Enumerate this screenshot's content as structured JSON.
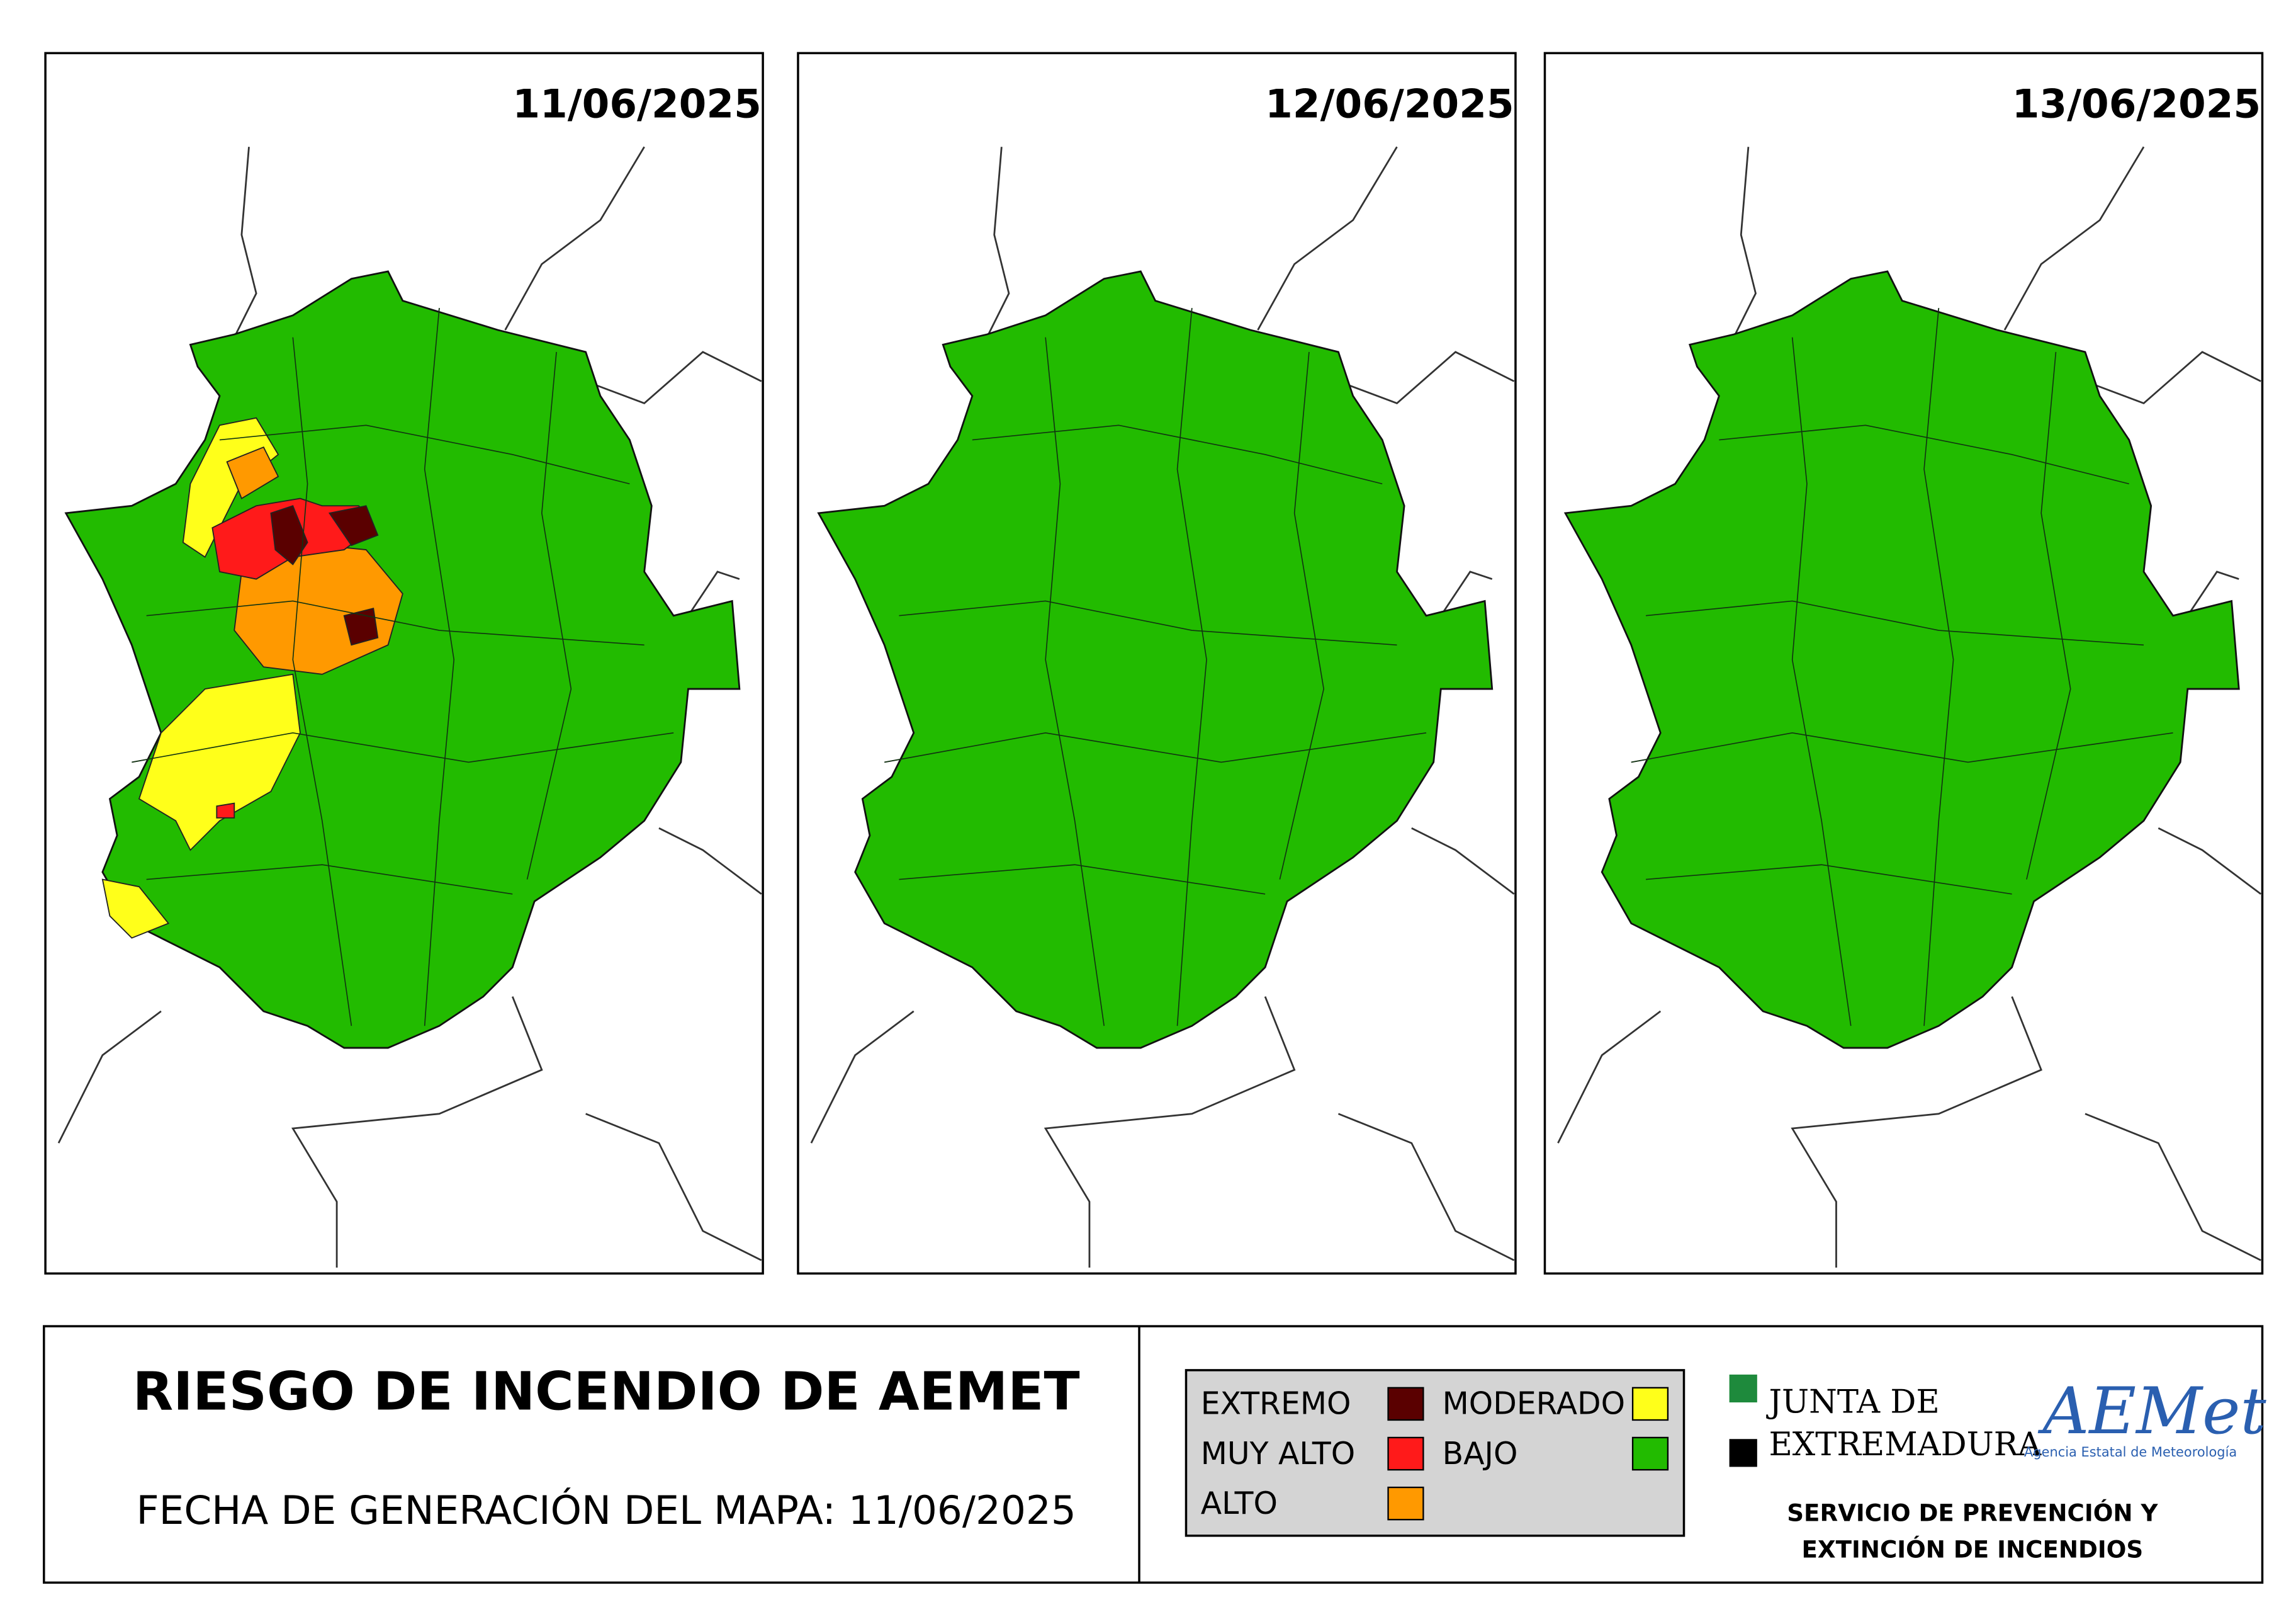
{
  "maps": [
    {
      "date": "11/06/2025"
    },
    {
      "date": "12/06/2025"
    },
    {
      "date": "13/06/2025"
    }
  ],
  "footer": {
    "title": "RIESGO DE INCENDIO DE AEMET",
    "generated": "FECHA DE GENERACIÓN DEL MAPA: 11/06/2025"
  },
  "legend": [
    {
      "label": "EXTREMO",
      "color": "#5a0000"
    },
    {
      "label": "MUY ALTO",
      "color": "#ff1a1a"
    },
    {
      "label": "ALTO",
      "color": "#ff9900"
    },
    {
      "label": "MODERADO",
      "color": "#ffff1a"
    },
    {
      "label": "BAJO",
      "color": "#22bb00"
    }
  ],
  "logos": {
    "junta": [
      "JUNTA DE",
      "EXTREMADURA"
    ],
    "aemet": "AEMet",
    "aemet_sub": "Agencia Estatal de Meteorología"
  },
  "service": [
    "SERVICIO DE PREVENCIÓN Y",
    "EXTINCIÓN DE INCENDIOS"
  ]
}
